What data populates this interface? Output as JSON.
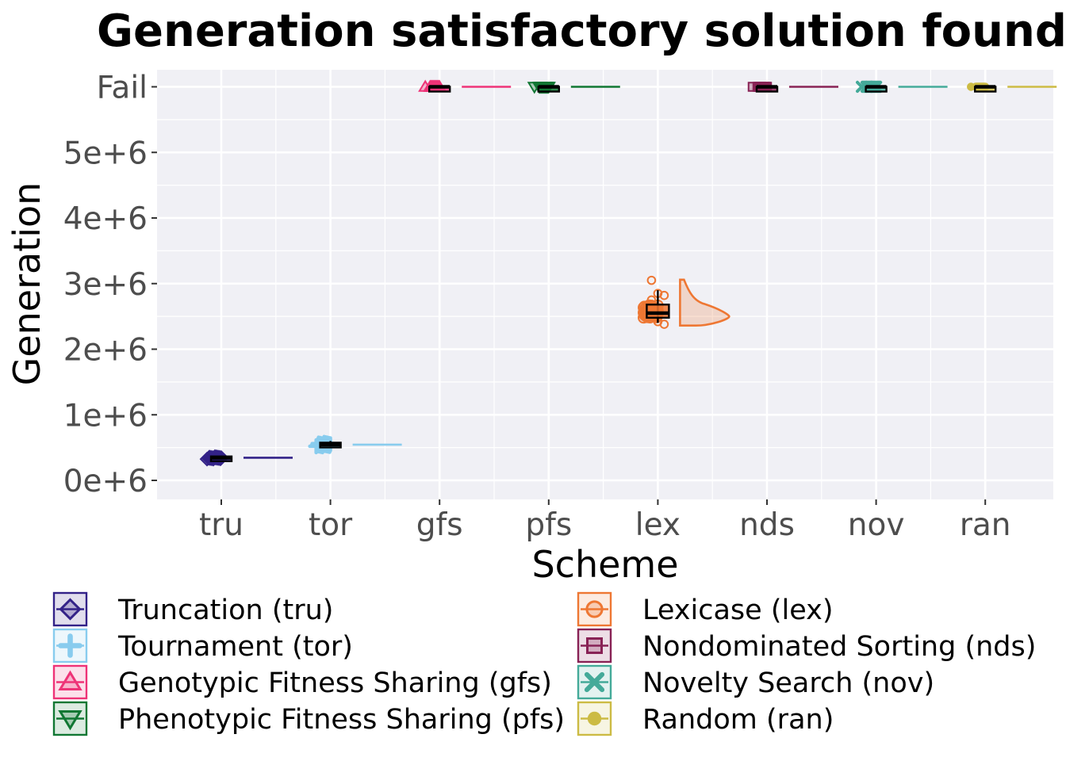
{
  "chart_data": {
    "type": "raincloud",
    "title": "Generation satisfactory solution found",
    "xlabel": "Scheme",
    "ylabel": "Generation",
    "y_ticks": [
      {
        "value": 0,
        "label": "0e+6"
      },
      {
        "value": 1000000,
        "label": "1e+6"
      },
      {
        "value": 2000000,
        "label": "2e+6"
      },
      {
        "value": 3000000,
        "label": "3e+6"
      },
      {
        "value": 4000000,
        "label": "4e+6"
      },
      {
        "value": 5000000,
        "label": "5e+6"
      },
      {
        "value": 6000000,
        "label": "Fail"
      }
    ],
    "ylim": [
      -250000,
      6250000
    ],
    "grid": true,
    "legend_position": "bottom",
    "categories": [
      "tru",
      "tor",
      "gfs",
      "pfs",
      "lex",
      "nds",
      "nov",
      "ran"
    ],
    "series": [
      {
        "key": "tru",
        "name": "Truncation (tru)",
        "color": "#332288",
        "marker": "diamond",
        "q1": 325000,
        "median": 345000,
        "q3": 365000,
        "min": 315000,
        "max": 375000,
        "outliers": []
      },
      {
        "key": "tor",
        "name": "Tournament (tor)",
        "color": "#88CCEE",
        "marker": "plus",
        "q1": 520000,
        "median": 545000,
        "q3": 575000,
        "min": 495000,
        "max": 600000,
        "outliers": []
      },
      {
        "key": "gfs",
        "name": "Genotypic Fitness Sharing (gfs)",
        "color": "#EE3377",
        "marker": "triangle-up",
        "q1": 6000000,
        "median": 6000000,
        "q3": 6000000,
        "min": 6000000,
        "max": 6000000,
        "outliers": []
      },
      {
        "key": "pfs",
        "name": "Phenotypic Fitness Sharing (pfs)",
        "color": "#117733",
        "marker": "triangle-down",
        "q1": 6000000,
        "median": 6000000,
        "q3": 6000000,
        "min": 6000000,
        "max": 6000000,
        "outliers": []
      },
      {
        "key": "lex",
        "name": "Lexicase (lex)",
        "color": "#EE7733",
        "marker": "circle",
        "q1": 2480000,
        "median": 2550000,
        "q3": 2680000,
        "min": 2400000,
        "max": 2900000,
        "outliers": [
          3050000,
          2850000,
          2820000,
          2750000,
          2420000,
          2380000
        ]
      },
      {
        "key": "nds",
        "name": "Nondominated Sorting (nds)",
        "color": "#882255",
        "marker": "square",
        "q1": 6000000,
        "median": 6000000,
        "q3": 6000000,
        "min": 6000000,
        "max": 6000000,
        "outliers": []
      },
      {
        "key": "nov",
        "name": "Novelty Search (nov)",
        "color": "#44AA99",
        "marker": "cross",
        "q1": 6000000,
        "median": 6000000,
        "q3": 6000000,
        "min": 6000000,
        "max": 6000000,
        "outliers": []
      },
      {
        "key": "ran",
        "name": "Random (ran)",
        "color": "#CCBB44",
        "marker": "point",
        "q1": 6000000,
        "median": 6000000,
        "q3": 6000000,
        "min": 6000000,
        "max": 6000000,
        "outliers": []
      }
    ]
  }
}
